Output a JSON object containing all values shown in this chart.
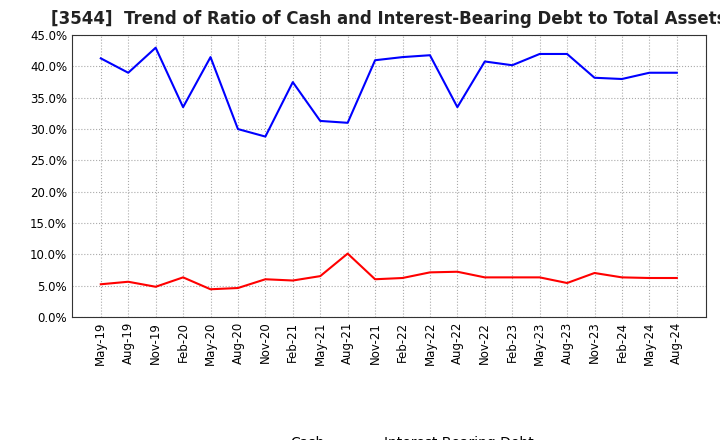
{
  "title": "[3544]  Trend of Ratio of Cash and Interest-Bearing Debt to Total Assets",
  "x_labels": [
    "May-19",
    "Aug-19",
    "Nov-19",
    "Feb-20",
    "May-20",
    "Aug-20",
    "Nov-20",
    "Feb-21",
    "May-21",
    "Aug-21",
    "Nov-21",
    "Feb-22",
    "May-22",
    "Aug-22",
    "Nov-22",
    "Feb-23",
    "May-23",
    "Aug-23",
    "Nov-23",
    "Feb-24",
    "May-24",
    "Aug-24"
  ],
  "cash": [
    0.052,
    0.056,
    0.048,
    0.063,
    0.044,
    0.046,
    0.06,
    0.058,
    0.065,
    0.101,
    0.06,
    0.062,
    0.071,
    0.072,
    0.063,
    0.063,
    0.063,
    0.054,
    0.07,
    0.063,
    0.062,
    0.062
  ],
  "interest_bearing_debt": [
    0.413,
    0.39,
    0.43,
    0.335,
    0.415,
    0.3,
    0.288,
    0.375,
    0.313,
    0.31,
    0.41,
    0.415,
    0.418,
    0.335,
    0.408,
    0.402,
    0.42,
    0.42,
    0.382,
    0.38,
    0.39,
    0.39
  ],
  "cash_color": "#FF0000",
  "debt_color": "#0000FF",
  "background_color": "#FFFFFF",
  "grid_color": "#AAAAAA",
  "ylim": [
    0.0,
    0.45
  ],
  "yticks": [
    0.0,
    0.05,
    0.1,
    0.15,
    0.2,
    0.25,
    0.3,
    0.35,
    0.4,
    0.45
  ],
  "legend_cash": "Cash",
  "legend_debt": "Interest-Bearing Debt",
  "title_fontsize": 12,
  "axis_fontsize": 8.5,
  "legend_fontsize": 10,
  "line_width": 1.5
}
